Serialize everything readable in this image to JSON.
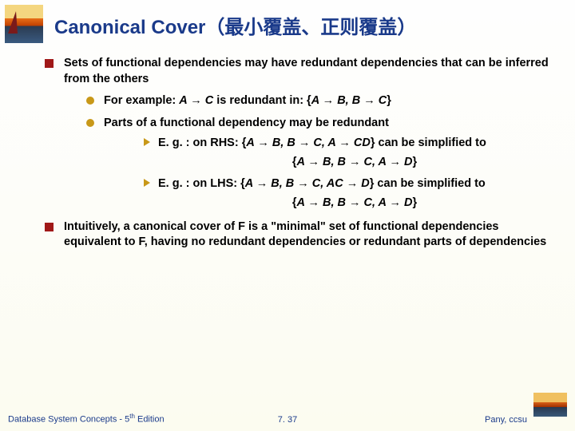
{
  "title": {
    "main": "Canonical Cover",
    "cjk": "（最小覆盖、正则覆盖）"
  },
  "bullets": {
    "b1": "Sets of functional dependencies may have redundant dependencies that can be inferred from the others",
    "b1_1_prefix": "For example:  ",
    "b1_1_fd": "A → C",
    "b1_1_mid": " is redundant in:   {",
    "b1_1_set": "A → B,   B → C",
    "b1_1_end": "}",
    "b1_2": "Parts of a functional dependency may be redundant",
    "b1_2_1_prefix": "E. g. : on RHS:   {",
    "b1_2_1_set": "A → B,   B → C,   A → CD",
    "b1_2_1_end": "}  can be simplified to",
    "b1_2_1_result_open": "{",
    "b1_2_1_result": "A → B,   B → C,   A → D",
    "b1_2_1_result_close": "}",
    "b1_2_2_prefix": "E. g. : on LHS:     {",
    "b1_2_2_set": "A → B,   B → C,   AC → D",
    "b1_2_2_end": "}  can be simplified to",
    "b1_2_2_result_open": "{",
    "b1_2_2_result": "A → B,   B → C,   A → D",
    "b1_2_2_result_close": "}",
    "b2": "Intuitively, a canonical cover of F is a \"minimal\" set of functional dependencies equivalent to F, having no redundant dependencies or redundant parts of dependencies"
  },
  "footer": {
    "left_a": "Database System Concepts - 5",
    "left_b": " Edition",
    "th": "th",
    "center": "7. 37",
    "right": "Pany, ccsu"
  }
}
